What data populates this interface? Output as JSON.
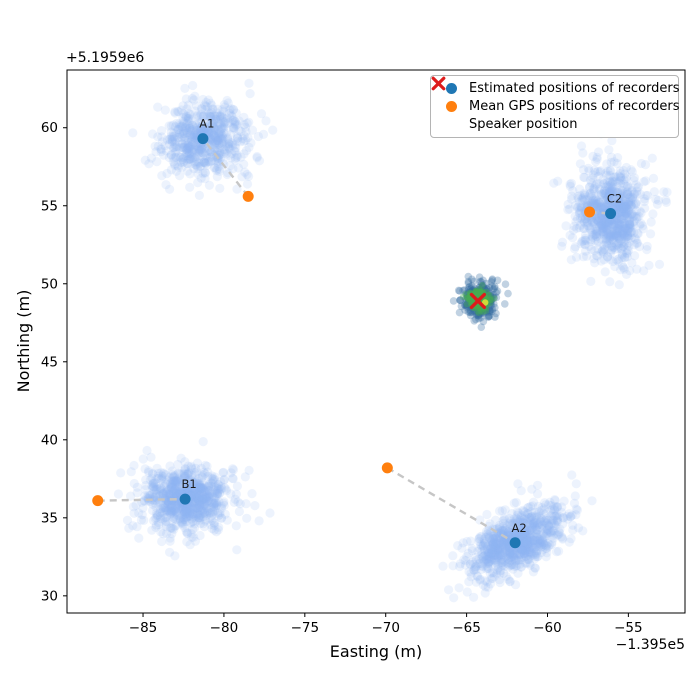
{
  "figure": {
    "background": "#ffffff"
  },
  "axes": {
    "xlabel": "Easting (m)",
    "ylabel": "Northing (m)",
    "x_offset_text": "−1.395e5",
    "y_offset_text": "+5.1959e6"
  },
  "legend": {
    "items": [
      {
        "label": "Estimated positions of recorders",
        "marker": "dot",
        "color": "#1f77b4"
      },
      {
        "label": "Mean GPS positions of recorders",
        "marker": "dot",
        "color": "#ff7f0e"
      },
      {
        "label": "Speaker position",
        "marker": "x",
        "color": "#dd1c1c"
      }
    ]
  },
  "chart_data": {
    "type": "scatter",
    "title": "",
    "xlabel": "Easting (m)",
    "ylabel": "Northing (m)",
    "x_axis_offset": "−1.395e5",
    "y_axis_offset": "+5.1959e6",
    "xlim": [
      -89.7,
      -51.5
    ],
    "ylim": [
      28.9,
      63.7
    ],
    "xticks": [
      -85,
      -80,
      -75,
      -70,
      -65,
      -60,
      -55
    ],
    "xtick_labels": [
      "−85",
      "−80",
      "−75",
      "−70",
      "−65",
      "−60",
      "−55"
    ],
    "yticks": [
      30,
      35,
      40,
      45,
      50,
      55,
      60
    ],
    "ytick_labels": [
      "30",
      "35",
      "40",
      "45",
      "50",
      "55",
      "60"
    ],
    "grid": false,
    "legend_position": "upper right",
    "colors": {
      "estimated": "#1f77b4",
      "mean_gps": "#ff7f0e",
      "speaker_x": "#dd1c1c",
      "cloud": "#8fb4f0",
      "speaker_cloud": "#336b9f",
      "speaker_core": "#46ad52",
      "speaker_gps_dot": "#cddc39",
      "connector": "#c6c6c6"
    },
    "recorders": [
      {
        "id": "A1",
        "estimated": [
          -81.3,
          59.3
        ],
        "mean_gps": [
          -78.5,
          55.6
        ],
        "cloud": {
          "sx": 1.25,
          "sy": 1.15,
          "angle": 0,
          "n": 620,
          "seed": 11
        }
      },
      {
        "id": "C2",
        "estimated": [
          -56.1,
          54.5
        ],
        "mean_gps": [
          -57.4,
          54.6
        ],
        "cloud": {
          "sx": 1.05,
          "sy": 1.45,
          "angle": 0,
          "n": 820,
          "seed": 22
        }
      },
      {
        "id": "B1",
        "estimated": [
          -82.4,
          36.2
        ],
        "mean_gps": [
          -87.8,
          36.1
        ],
        "cloud": {
          "sx": 1.3,
          "sy": 1.0,
          "angle": 0,
          "n": 860,
          "seed": 33
        }
      },
      {
        "id": "A2",
        "estimated": [
          -62.0,
          33.4
        ],
        "mean_gps": [
          -69.9,
          38.2
        ],
        "cloud": {
          "sx": 1.6,
          "sy": 0.85,
          "angle": 33,
          "n": 860,
          "seed": 44
        }
      }
    ],
    "speaker": {
      "position": [
        -64.3,
        48.9
      ],
      "estimate_cloud": {
        "center": [
          -64.2,
          48.95
        ],
        "sx": 0.5,
        "sy": 0.55,
        "n": 320,
        "seed": 55
      },
      "core_cloud": {
        "center": [
          -64.25,
          48.95
        ],
        "sx": 0.28,
        "sy": 0.3,
        "n": 170,
        "seed": 66
      },
      "gps_dot": [
        -63.85,
        48.8
      ]
    }
  }
}
